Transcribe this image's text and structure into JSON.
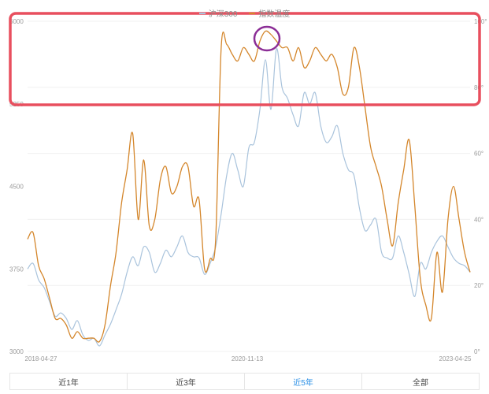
{
  "legend": {
    "series1": "沪深300",
    "series2": "指数温度"
  },
  "tabs": [
    {
      "label": "近1年",
      "active": false
    },
    {
      "label": "近3年",
      "active": false
    },
    {
      "label": "近5年",
      "active": true
    },
    {
      "label": "全部",
      "active": false
    }
  ],
  "colors": {
    "series1": "#a9c3dc",
    "series2": "#d4862b",
    "highlight_rect": "#e84f5e",
    "highlight_circle": "#8b2d96",
    "active_tab": "#2a8fe6"
  },
  "chart_data": {
    "type": "line",
    "x_ticks": [
      "2018-04-27",
      "2020-11-13",
      "2023-04-25"
    ],
    "left_axis": {
      "ticks": [
        "3000",
        "3750",
        "4500",
        "5250",
        "6000"
      ],
      "range": [
        3000,
        6000
      ]
    },
    "right_axis": {
      "ticks": [
        "0°",
        "20°",
        "40°",
        "60°",
        "80°",
        "100°"
      ],
      "range": [
        0,
        100
      ]
    },
    "series": [
      {
        "name": "沪深300",
        "axis": "left",
        "values": [
          3750,
          3800,
          3650,
          3580,
          3450,
          3320,
          3350,
          3300,
          3200,
          3280,
          3150,
          3100,
          3120,
          3050,
          3150,
          3250,
          3380,
          3520,
          3720,
          3860,
          3780,
          3950,
          3900,
          3720,
          3800,
          3920,
          3860,
          3950,
          4050,
          3900,
          3860,
          3850,
          3700,
          3800,
          3950,
          4250,
          4600,
          4800,
          4650,
          4500,
          4850,
          4900,
          5200,
          5650,
          5200,
          5750,
          5400,
          5300,
          5150,
          5050,
          5350,
          5250,
          5350,
          5050,
          4900,
          4950,
          5050,
          4800,
          4650,
          4600,
          4300,
          4100,
          4150,
          4200,
          3900,
          3850,
          3850,
          4050,
          3900,
          3700,
          3500,
          3800,
          3750,
          3900,
          4000,
          4050,
          3950,
          3850,
          3800,
          3780,
          3720
        ]
      },
      {
        "name": "指数温度",
        "axis": "right",
        "values": [
          34,
          36,
          26,
          22,
          16,
          10,
          10,
          8,
          4,
          6,
          4,
          4,
          4,
          3,
          8,
          20,
          30,
          45,
          55,
          66,
          40,
          58,
          38,
          40,
          52,
          56,
          48,
          50,
          56,
          56,
          44,
          46,
          25,
          28,
          34,
          92,
          93,
          90,
          88,
          92,
          90,
          88,
          94,
          97,
          96,
          94,
          92,
          92,
          88,
          92,
          86,
          88,
          92,
          90,
          88,
          90,
          86,
          78,
          80,
          92,
          86,
          74,
          62,
          56,
          50,
          40,
          32,
          45,
          55,
          64,
          44,
          22,
          14,
          10,
          30,
          18,
          40,
          50,
          40,
          30,
          24
        ]
      }
    ]
  }
}
